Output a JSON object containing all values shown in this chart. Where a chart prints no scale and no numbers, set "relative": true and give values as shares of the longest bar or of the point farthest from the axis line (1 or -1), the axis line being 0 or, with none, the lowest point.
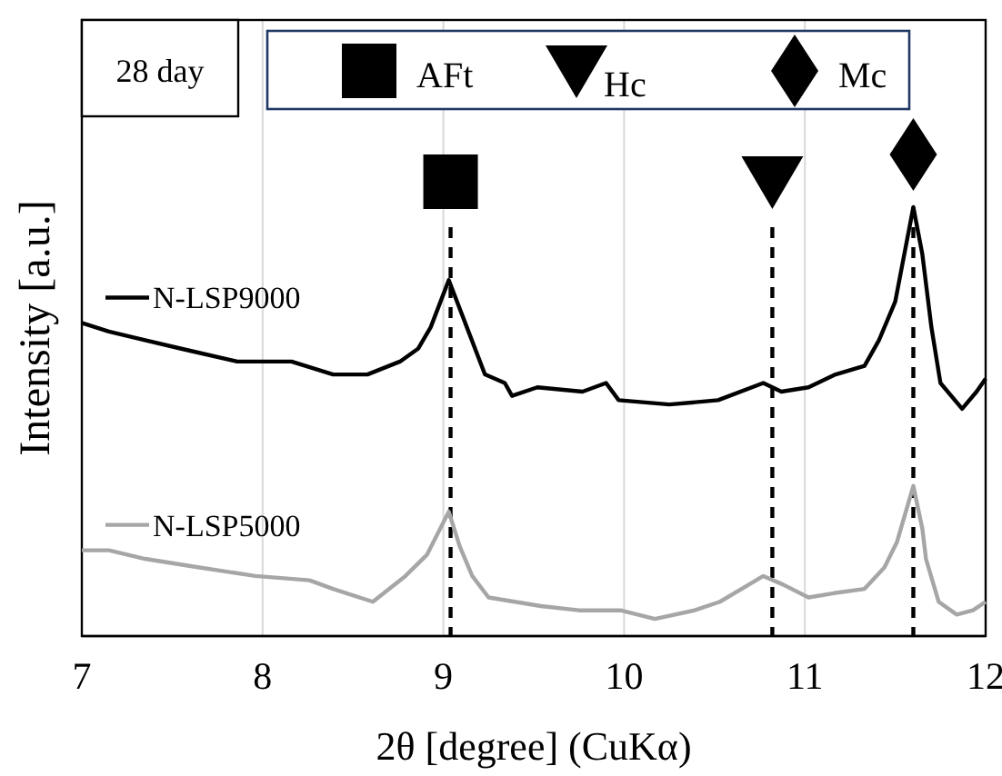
{
  "chart_data": {
    "type": "line",
    "relative": true,
    "xlabel": "2θ [degree] (CuKα)",
    "ylabel": "Intensity [a.u.]",
    "xlim": [
      7,
      12
    ],
    "xticks": [
      7,
      8,
      9,
      10,
      11,
      12
    ],
    "tick_labels": "x",
    "grid": "x",
    "legend": "left",
    "annotations": [
      "28 day",
      "AFt",
      "Hc",
      "Mc"
    ],
    "ref_lines": [
      {
        "axis": "x",
        "value": 9.04,
        "line_style": "dashed",
        "color": "#000000"
      },
      {
        "axis": "x",
        "value": 10.82,
        "line_style": "dashed",
        "color": "#000000"
      },
      {
        "axis": "x",
        "value": 11.6,
        "line_style": "dashed",
        "color": "#000000"
      }
    ],
    "series": [
      {
        "name": "N-LSP9000",
        "color": "#000000",
        "x": [
          7.0,
          7.15,
          7.35,
          7.55,
          7.86,
          8.16,
          8.39,
          8.58,
          8.76,
          8.86,
          8.93,
          9.03,
          9.13,
          9.23,
          9.34,
          9.38,
          9.52,
          9.77,
          9.9,
          9.97,
          10.25,
          10.52,
          10.77,
          10.87,
          11.02,
          11.17,
          11.33,
          11.41,
          11.5,
          11.55,
          11.6,
          11.65,
          11.7,
          11.75,
          11.87,
          11.95,
          12.0
        ],
        "values": [
          0.73,
          0.71,
          0.69,
          0.67,
          0.64,
          0.64,
          0.61,
          0.61,
          0.64,
          0.67,
          0.72,
          0.83,
          0.72,
          0.61,
          0.59,
          0.56,
          0.58,
          0.57,
          0.59,
          0.55,
          0.54,
          0.55,
          0.59,
          0.57,
          0.58,
          0.61,
          0.63,
          0.69,
          0.78,
          0.89,
          1,
          0.89,
          0.72,
          0.59,
          0.53,
          0.57,
          0.6
        ]
      },
      {
        "name": "N-LSP5000",
        "color": "#a6a6a6",
        "x": [
          7.0,
          7.15,
          7.35,
          7.65,
          7.96,
          8.26,
          8.39,
          8.61,
          8.79,
          8.91,
          9.03,
          9.09,
          9.16,
          9.25,
          9.54,
          9.75,
          9.98,
          10.17,
          10.39,
          10.53,
          10.69,
          10.77,
          10.88,
          11.02,
          11.16,
          11.33,
          11.44,
          11.51,
          11.6,
          11.65,
          11.67,
          11.74,
          11.84,
          11.93,
          12.0
        ],
        "values": [
          0.2,
          0.2,
          0.18,
          0.16,
          0.14,
          0.13,
          0.11,
          0.08,
          0.14,
          0.19,
          0.29,
          0.21,
          0.14,
          0.09,
          0.07,
          0.06,
          0.06,
          0.04,
          0.06,
          0.08,
          0.12,
          0.14,
          0.12,
          0.09,
          0.1,
          0.11,
          0.16,
          0.22,
          0.35,
          0.25,
          0.18,
          0.08,
          0.05,
          0.06,
          0.08
        ]
      }
    ]
  }
}
